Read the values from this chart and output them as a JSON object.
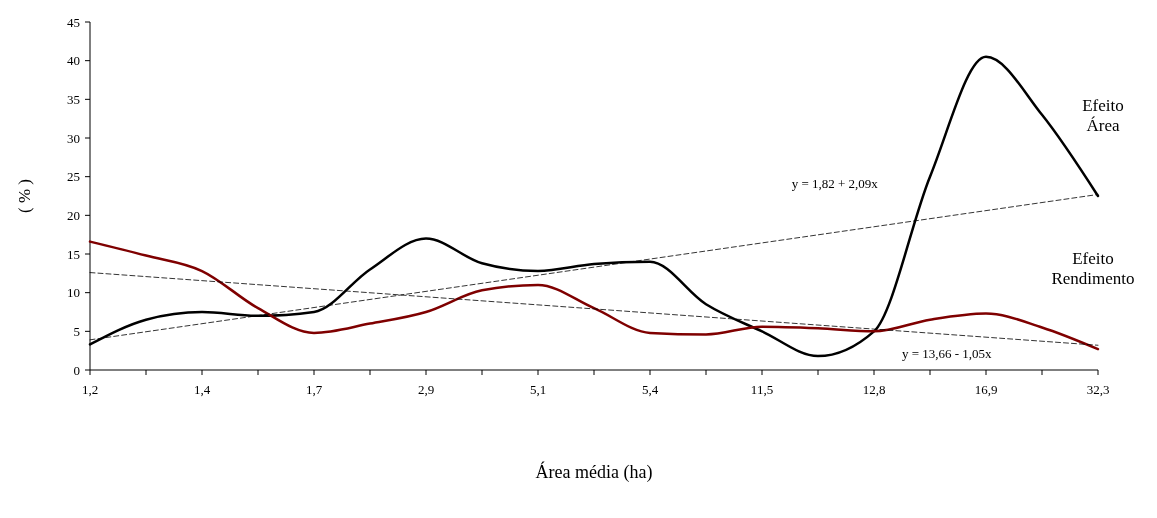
{
  "chart_data": {
    "type": "line",
    "xlabel": "Área média (ha)",
    "ylabel": "( % )",
    "categories": [
      "1,2",
      null,
      "1,4",
      null,
      "1,7",
      null,
      "2,9",
      null,
      "5,1",
      null,
      "5,4",
      null,
      "11,5",
      null,
      "12,8",
      null,
      "16,9",
      null,
      "32,3"
    ],
    "ylim": [
      0,
      45
    ],
    "yticks": [
      0,
      5,
      10,
      15,
      20,
      25,
      30,
      35,
      40,
      45
    ],
    "grid": false,
    "marker": "none",
    "series": [
      {
        "name": "Efeito Área",
        "color": "#000000",
        "values": [
          3.3,
          6.5,
          7.5,
          7.0,
          7.5,
          13,
          17,
          13.8,
          12.8,
          13.7,
          14,
          8.5,
          5,
          1.8,
          5,
          25,
          40.5,
          33,
          22.5
        ]
      },
      {
        "name": "Efeito Rendimento",
        "color": "#7f0000",
        "values": [
          16.6,
          14.8,
          12.8,
          8,
          4.8,
          6,
          7.5,
          10.3,
          11,
          8,
          4.8,
          4.6,
          5.6,
          5.4,
          5,
          6.5,
          7.3,
          5.5,
          2.7
        ]
      },
      {
        "type": "line",
        "color": "#000000",
        "line_style": "dashed",
        "x": [
          "1,2",
          "32,3"
        ],
        "values": [
          3.9,
          22.7
        ]
      },
      {
        "type": "line",
        "color": "#000000",
        "line_style": "dashed",
        "x": [
          "1,2",
          "32,3"
        ],
        "values": [
          12.6,
          3.2
        ]
      }
    ],
    "annotations": [
      "y = 1,82 + 2,09x",
      "y = 13,66 - 1,05x"
    ]
  }
}
